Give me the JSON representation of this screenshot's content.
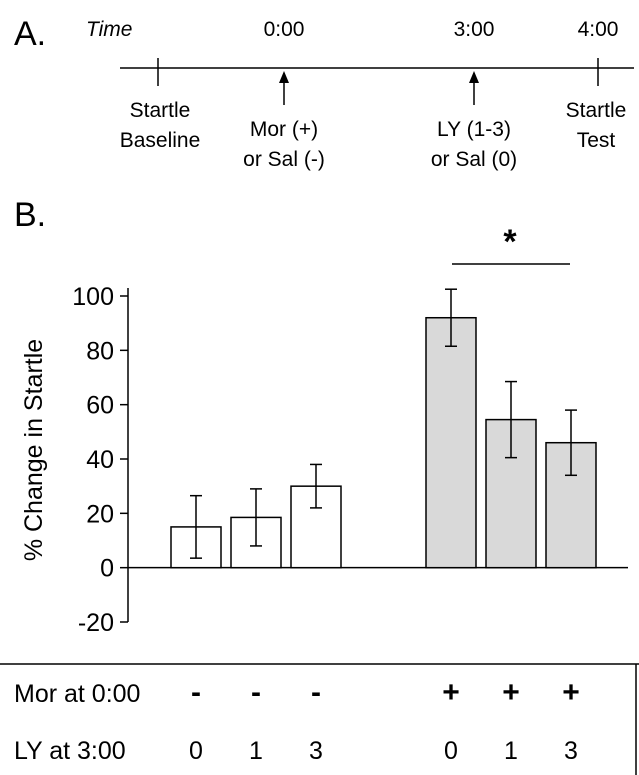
{
  "panel_a": {
    "label": "A.",
    "time_label": "Time",
    "ticks": [
      "0:00",
      "3:00",
      "4:00"
    ],
    "events": [
      {
        "line1": "Startle",
        "line2": "Baseline"
      },
      {
        "line1": "Mor (+)",
        "line2": "or Sal (-)"
      },
      {
        "line1": "LY (1-3)",
        "line2": "or Sal (0)"
      },
      {
        "line1": "Startle",
        "line2": "Test"
      }
    ]
  },
  "panel_b": {
    "label": "B.",
    "significance": "*"
  },
  "chart_data": {
    "type": "bar",
    "title": "",
    "xlabel": "",
    "ylabel": "% Change in Startle",
    "ylim": [
      -20,
      100
    ],
    "yticks": [
      -20,
      0,
      20,
      40,
      60,
      80,
      100
    ],
    "grid": false,
    "groups": [
      {
        "name": "Mor -",
        "fill": "#ffffff",
        "values": [
          15,
          18.5,
          30
        ],
        "errors": [
          11.5,
          10.5,
          8
        ]
      },
      {
        "name": "Mor +",
        "fill": "#d9d9d9",
        "values": [
          92,
          54.5,
          46
        ],
        "errors": [
          10.5,
          14,
          12
        ]
      }
    ]
  },
  "table": {
    "rows": [
      {
        "label": "Mor at 0:00",
        "values": [
          "-",
          "-",
          "-",
          "+",
          "+",
          "+"
        ]
      },
      {
        "label": "LY at 3:00",
        "values": [
          "0",
          "1",
          "3",
          "0",
          "1",
          "3"
        ]
      }
    ]
  }
}
